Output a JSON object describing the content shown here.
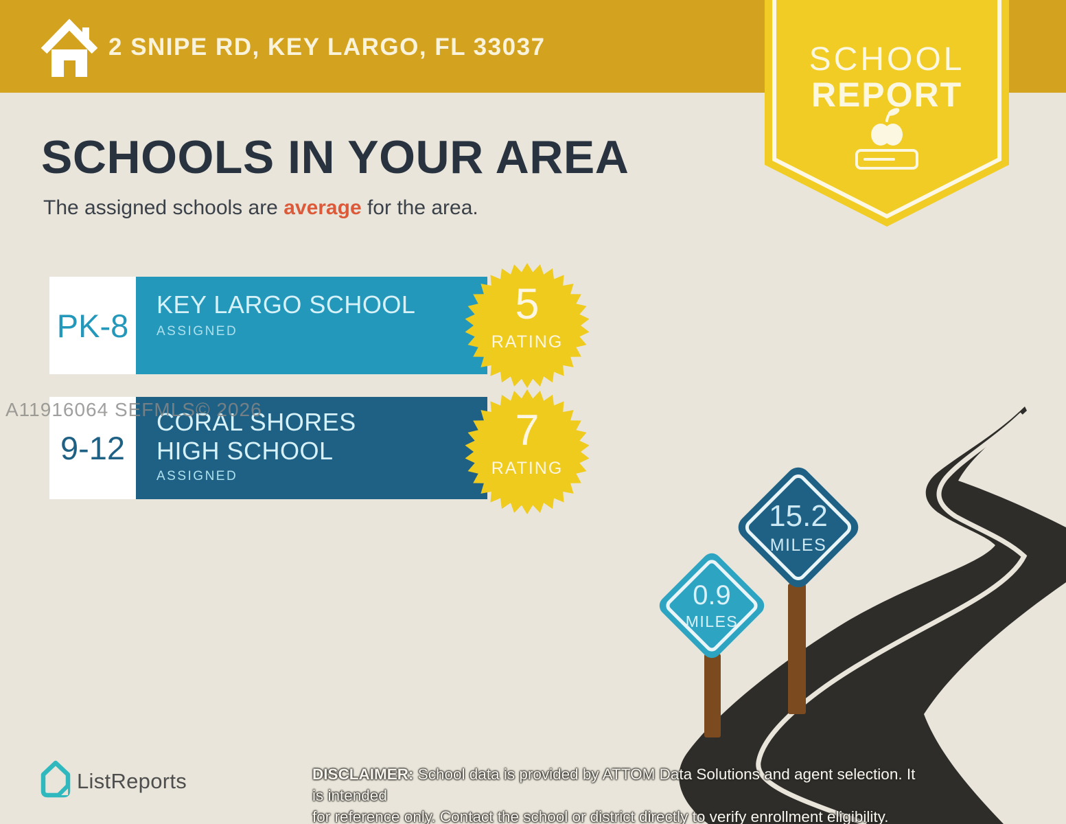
{
  "header": {
    "address": "2 SNIPE RD, KEY LARGO, FL 33037"
  },
  "badge": {
    "line1": "SCHOOL",
    "line2": "REPORT"
  },
  "main": {
    "title": "SCHOOLS IN YOUR AREA",
    "subtitle_prefix": "The assigned schools are ",
    "subtitle_highlight": "average",
    "subtitle_suffix": " for the area."
  },
  "schools": [
    {
      "grades": "PK-8",
      "name": "KEY LARGO SCHOOL",
      "status": "ASSIGNED",
      "rating": "5",
      "rating_label": "RATING"
    },
    {
      "grades": "9-12",
      "name": "CORAL SHORES HIGH SCHOOL",
      "status": "ASSIGNED",
      "rating": "7",
      "rating_label": "RATING"
    }
  ],
  "signs": [
    {
      "distance": "0.9",
      "unit": "MILES"
    },
    {
      "distance": "15.2",
      "unit": "MILES"
    }
  ],
  "watermark": "A11916064  SEFMLS© 2026",
  "footer": {
    "brand": "ListReports",
    "disclaimer_label": "DISCLAIMER:",
    "disclaimer_line1": " School data is provided by ATTOM Data Solutions and agent selection. It is intended",
    "disclaimer_line2": "for reference only. Contact the school or district directly to verify enrollment eligibility."
  },
  "colors": {
    "header_gold": "#D3A21F",
    "badge_yellow": "#F0CC24",
    "background_beige": "#E9E5DA",
    "title_navy": "#28333F",
    "highlight_orange": "#DC5A39",
    "row1_teal": "#2498BA",
    "row2_blue": "#1F6185",
    "sign_light_blue": "#2EA4C3",
    "sign_dark_blue": "#1F6185",
    "seal_yellow": "#EFCB1D",
    "road_dark": "#2E2D2A",
    "post_brown": "#7B4A1E",
    "brand_teal": "#2FB9BE"
  }
}
